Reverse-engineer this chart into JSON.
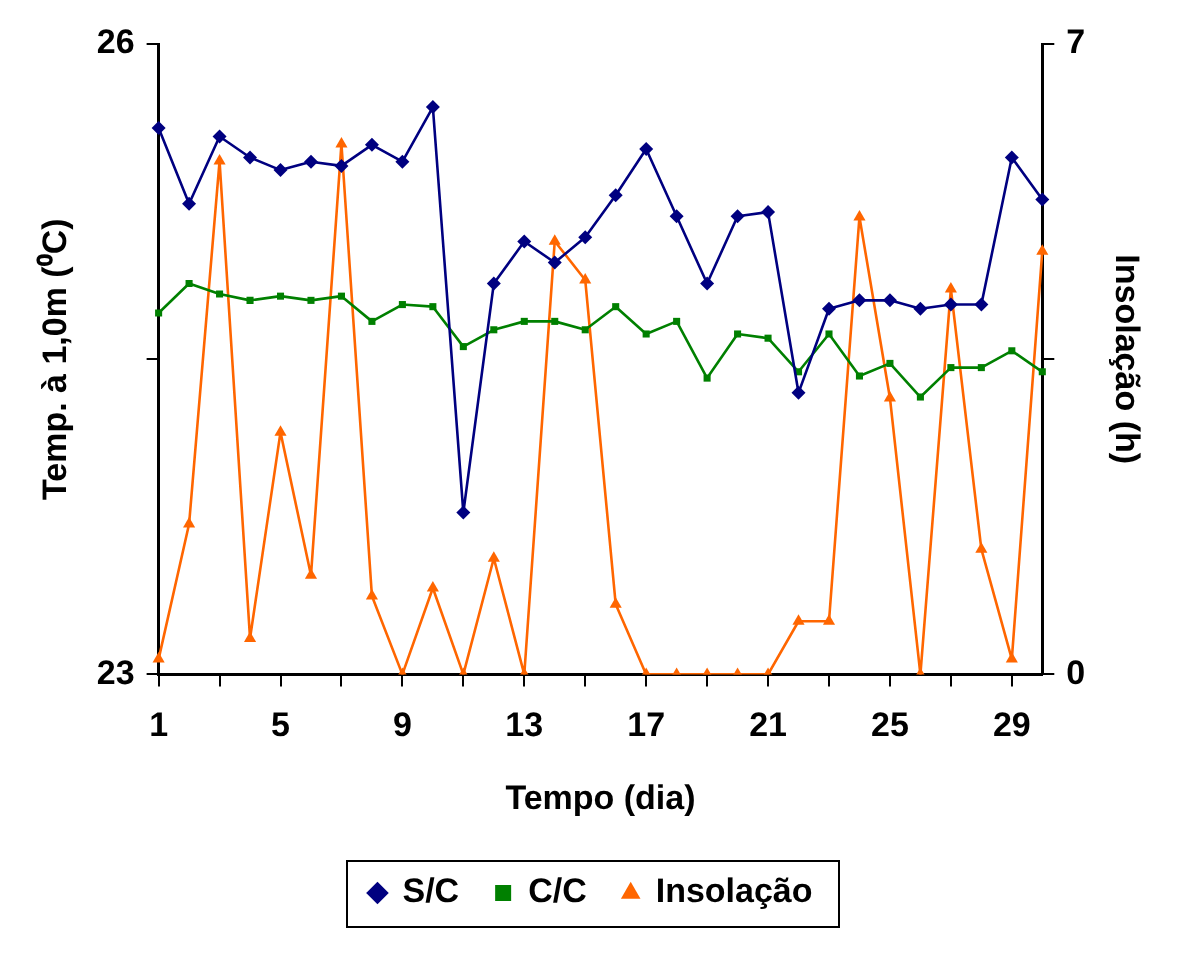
{
  "chart_data": {
    "type": "line",
    "xlabel": "Tempo (dia)",
    "ylabel": "Temp. à 1,0m (⁰C)",
    "y2label": "Insolação (h)",
    "categories": [
      "1",
      null,
      null,
      null,
      "5",
      null,
      null,
      null,
      "9",
      null,
      null,
      null,
      "13",
      null,
      null,
      null,
      "17",
      null,
      null,
      null,
      "21",
      null,
      null,
      null,
      "25",
      null,
      null,
      null,
      "29",
      null
    ],
    "series": [
      {
        "name": "S/C",
        "color": "#000080",
        "marker": "diamond",
        "values": [
          25.6,
          25.24,
          25.56,
          25.46,
          25.4,
          25.44,
          25.42,
          25.52,
          25.44,
          25.7,
          23.77,
          24.86,
          25.06,
          24.96,
          25.08,
          25.28,
          25.5,
          25.18,
          24.86,
          25.18,
          25.2,
          24.34,
          24.74,
          24.78,
          24.78,
          24.74,
          24.76,
          24.76,
          25.46,
          25.26
        ]
      },
      {
        "name": "C/C",
        "color": "#008000",
        "marker": "square",
        "values": [
          24.72,
          24.86,
          24.81,
          24.78,
          24.8,
          24.78,
          24.8,
          24.68,
          24.76,
          24.75,
          24.56,
          24.64,
          24.68,
          24.68,
          24.64,
          24.75,
          24.62,
          24.68,
          24.41,
          24.62,
          24.6,
          24.44,
          24.62,
          24.42,
          24.48,
          24.32,
          24.46,
          24.46,
          24.54,
          24.44
        ]
      },
      {
        "name": "Insolação",
        "color": "#ff6600",
        "marker": "triangle",
        "axis": "y2",
        "values": [
          0.17,
          1.67,
          5.7,
          0.4,
          2.69,
          1.1,
          5.89,
          0.87,
          0,
          0.96,
          0,
          1.29,
          0,
          4.81,
          4.38,
          0.78,
          0,
          0,
          0,
          0,
          0,
          0.59,
          0.59,
          5.08,
          3.07,
          0,
          4.28,
          1.39,
          0.17,
          4.7
        ]
      }
    ],
    "ylim": [
      23,
      26
    ],
    "yticks": [
      23,
      {
        "value": 24.5,
        "label": null
      },
      26
    ],
    "y2lim": [
      0,
      7
    ],
    "y2ticks": [
      0,
      {
        "value": 3.5,
        "label": null
      },
      7
    ],
    "grid": false,
    "legend": "bottom",
    "line_style": "solid"
  }
}
